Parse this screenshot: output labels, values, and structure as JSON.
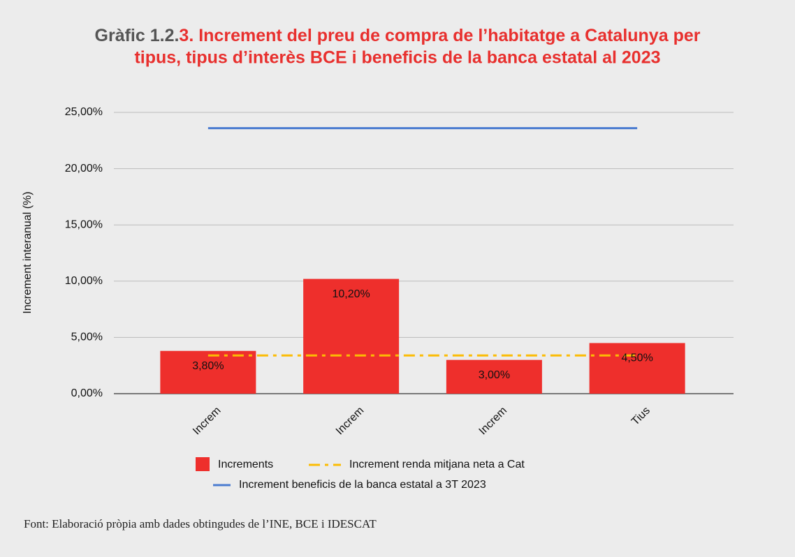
{
  "chart_data": {
    "type": "bar",
    "title": {
      "number": "Gràfic 1.2.",
      "lines": [
        "3. Increment del preu de compra de l’habitatge a Catalunya per",
        "tipus, tipus d’interès BCE i beneficis de la banca estatal al 2023"
      ]
    },
    "ylabel": "Increment interanual (%)",
    "categories": [
      "Increm",
      "Increm",
      "Increm",
      "Tius"
    ],
    "values": [
      3.8,
      10.2,
      3.0,
      4.5
    ],
    "value_labels": [
      "3,80%",
      "10,20%",
      "3,00%",
      "4,50%"
    ],
    "name": "Increments",
    "color": "#ee2f2c",
    "lines": [
      {
        "name": "Increment renda mitjana neta a Cat",
        "color": "#fbbc04",
        "dashed": true,
        "values": [
          3.4,
          3.4,
          3.4,
          3.4
        ]
      },
      {
        "name": "Increment beneficis de la banca estatal a 3T 2023",
        "color": "#4a7bd0",
        "dashed": false,
        "values": [
          23.6,
          23.6,
          23.6,
          23.6
        ]
      }
    ],
    "ylim": [
      0,
      25
    ],
    "yticks": [
      {
        "value": 0,
        "label": "0,00%"
      },
      {
        "value": 5,
        "label": "5,00%"
      },
      {
        "value": 10,
        "label": "10,00%"
      },
      {
        "value": 15,
        "label": "15,00%"
      },
      {
        "value": 20,
        "label": "20,00%"
      },
      {
        "value": 25,
        "label": "25,00%"
      }
    ],
    "grid": true,
    "source": "Font: Elaboració pròpia amb dades obtingudes de l’INE, BCE i IDESCAT"
  }
}
